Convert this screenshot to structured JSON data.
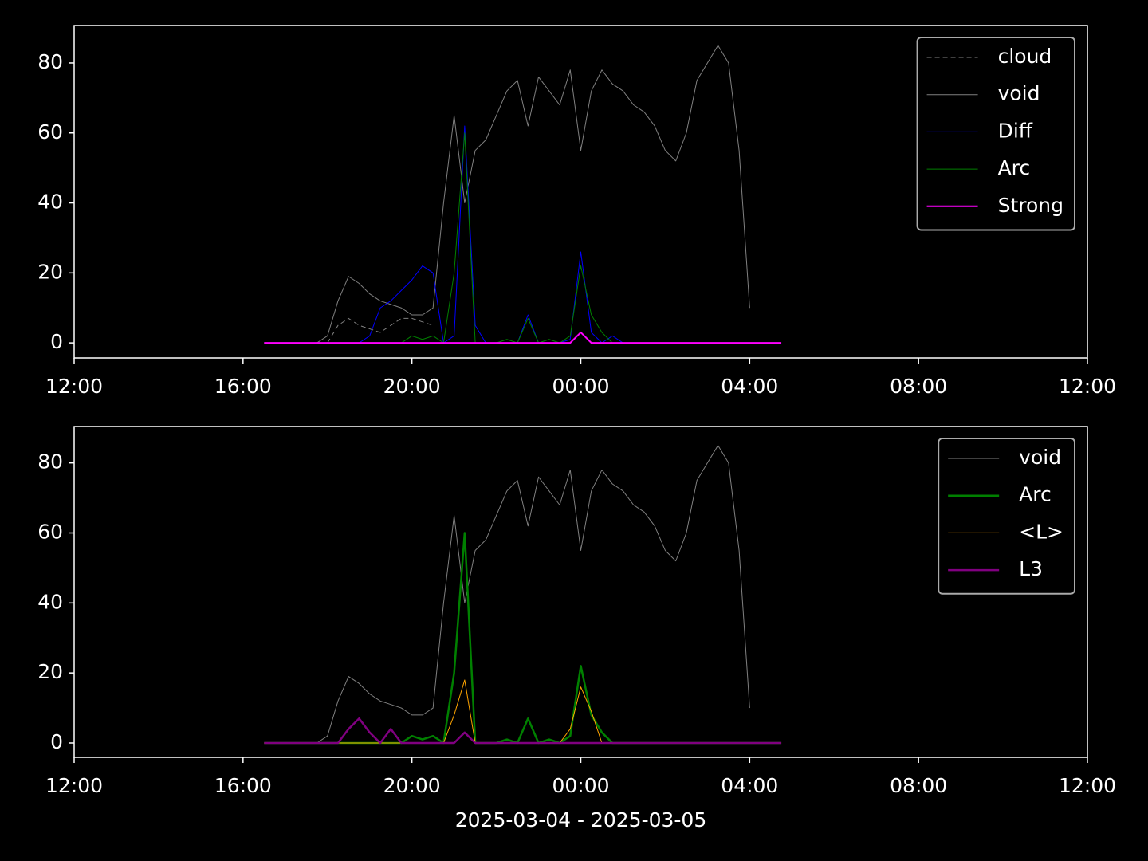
{
  "chart_data": [
    {
      "type": "line",
      "x": [
        "2025-03-04T16:30",
        "2025-03-04T16:45",
        "2025-03-04T17:00",
        "2025-03-04T17:15",
        "2025-03-04T17:30",
        "2025-03-04T17:45",
        "2025-03-04T18:00",
        "2025-03-04T18:15",
        "2025-03-04T18:30",
        "2025-03-04T18:45",
        "2025-03-04T19:00",
        "2025-03-04T19:15",
        "2025-03-04T19:30",
        "2025-03-04T19:45",
        "2025-03-04T20:00",
        "2025-03-04T20:15",
        "2025-03-04T20:30",
        "2025-03-04T20:45",
        "2025-03-04T21:00",
        "2025-03-04T21:15",
        "2025-03-04T21:30",
        "2025-03-04T21:45",
        "2025-03-04T22:00",
        "2025-03-04T22:15",
        "2025-03-04T22:30",
        "2025-03-04T22:45",
        "2025-03-04T23:00",
        "2025-03-04T23:15",
        "2025-03-04T23:30",
        "2025-03-04T23:45",
        "2025-03-05T00:00",
        "2025-03-05T00:15",
        "2025-03-05T00:30",
        "2025-03-05T00:45",
        "2025-03-05T01:00",
        "2025-03-05T01:15",
        "2025-03-05T01:30",
        "2025-03-05T01:45",
        "2025-03-05T02:00",
        "2025-03-05T02:15",
        "2025-03-05T02:30",
        "2025-03-05T02:45",
        "2025-03-05T03:00",
        "2025-03-05T03:15",
        "2025-03-05T03:30",
        "2025-03-05T03:45",
        "2025-03-05T04:00",
        "2025-03-05T04:15",
        "2025-03-05T04:30",
        "2025-03-05T04:45"
      ],
      "xlim": [
        "2025-03-04T12:00",
        "2025-03-05T12:00"
      ],
      "xticks": [
        {
          "value": "2025-03-04T12:00",
          "label": "12:00"
        },
        {
          "value": "2025-03-04T16:00",
          "label": "16:00"
        },
        {
          "value": "2025-03-04T20:00",
          "label": "20:00"
        },
        {
          "value": "2025-03-05T00:00",
          "label": "00:00"
        },
        {
          "value": "2025-03-05T04:00",
          "label": "04:00"
        },
        {
          "value": "2025-03-05T08:00",
          "label": "08:00"
        },
        {
          "value": "2025-03-05T12:00",
          "label": "12:00"
        }
      ],
      "ylim": [
        -4.3,
        90.7
      ],
      "yticks": [
        0,
        20,
        40,
        60,
        80
      ],
      "legend": "upper right",
      "series": [
        {
          "name": "cloud",
          "color": "#808080",
          "linestyle": "dashed",
          "linewidth": 1,
          "values": [
            null,
            null,
            null,
            null,
            null,
            null,
            0,
            5,
            7,
            5,
            4,
            3,
            5,
            7,
            7,
            6,
            5,
            null,
            null,
            null,
            null,
            null,
            null,
            null,
            null,
            null,
            null,
            null,
            null,
            null,
            null,
            null,
            null,
            null,
            null,
            null,
            null,
            null,
            null,
            null,
            null,
            null,
            null,
            null,
            null,
            null,
            null,
            null,
            null,
            null
          ]
        },
        {
          "name": "void",
          "color": "#808080",
          "linestyle": "solid",
          "linewidth": 1,
          "values": [
            null,
            null,
            null,
            null,
            null,
            0,
            2,
            12,
            19,
            17,
            14,
            12,
            11,
            10,
            8,
            8,
            10,
            40,
            65,
            40,
            55,
            58,
            65,
            72,
            75,
            62,
            76,
            72,
            68,
            78,
            55,
            72,
            78,
            74,
            72,
            68,
            66,
            62,
            55,
            52,
            60,
            75,
            80,
            85,
            80,
            55,
            10,
            null,
            null,
            null
          ]
        },
        {
          "name": "Diff",
          "color": "#0000ff",
          "linestyle": "solid",
          "linewidth": 1,
          "values": [
            0,
            0,
            0,
            0,
            0,
            0,
            0,
            0,
            0,
            0,
            2,
            10,
            12,
            15,
            18,
            22,
            20,
            0,
            2,
            62,
            5,
            0,
            0,
            0,
            0,
            8,
            0,
            0,
            0,
            1,
            26,
            3,
            0,
            2,
            0,
            0,
            0,
            0,
            0,
            0,
            0,
            0,
            0,
            0,
            0,
            0,
            0,
            0,
            0,
            0
          ]
        },
        {
          "name": "Arc",
          "color": "#008000",
          "linestyle": "solid",
          "linewidth": 1,
          "values": [
            0,
            0,
            0,
            0,
            0,
            0,
            0,
            0,
            0,
            0,
            0,
            0,
            0,
            0,
            2,
            1,
            2,
            0,
            20,
            60,
            0,
            0,
            0,
            1,
            0,
            7,
            0,
            1,
            0,
            2,
            22,
            8,
            3,
            0,
            0,
            0,
            0,
            0,
            0,
            0,
            0,
            0,
            0,
            0,
            0,
            0,
            0,
            0,
            0,
            0
          ]
        },
        {
          "name": "Strong",
          "color": "#ff00ff",
          "linestyle": "solid",
          "linewidth": 2,
          "values": [
            0,
            0,
            0,
            0,
            0,
            0,
            0,
            0,
            0,
            0,
            0,
            0,
            0,
            0,
            0,
            0,
            0,
            0,
            0,
            0,
            0,
            0,
            0,
            0,
            0,
            0,
            0,
            0,
            0,
            0,
            3,
            0,
            0,
            0,
            0,
            0,
            0,
            0,
            0,
            0,
            0,
            0,
            0,
            0,
            0,
            0,
            0,
            0,
            0,
            0
          ]
        }
      ]
    },
    {
      "type": "line",
      "x": [
        "2025-03-04T16:30",
        "2025-03-04T16:45",
        "2025-03-04T17:00",
        "2025-03-04T17:15",
        "2025-03-04T17:30",
        "2025-03-04T17:45",
        "2025-03-04T18:00",
        "2025-03-04T18:15",
        "2025-03-04T18:30",
        "2025-03-04T18:45",
        "2025-03-04T19:00",
        "2025-03-04T19:15",
        "2025-03-04T19:30",
        "2025-03-04T19:45",
        "2025-03-04T20:00",
        "2025-03-04T20:15",
        "2025-03-04T20:30",
        "2025-03-04T20:45",
        "2025-03-04T21:00",
        "2025-03-04T21:15",
        "2025-03-04T21:30",
        "2025-03-04T21:45",
        "2025-03-04T22:00",
        "2025-03-04T22:15",
        "2025-03-04T22:30",
        "2025-03-04T22:45",
        "2025-03-04T23:00",
        "2025-03-04T23:15",
        "2025-03-04T23:30",
        "2025-03-04T23:45",
        "2025-03-05T00:00",
        "2025-03-05T00:15",
        "2025-03-05T00:30",
        "2025-03-05T00:45",
        "2025-03-05T01:00",
        "2025-03-05T01:15",
        "2025-03-05T01:30",
        "2025-03-05T01:45",
        "2025-03-05T02:00",
        "2025-03-05T02:15",
        "2025-03-05T02:30",
        "2025-03-05T02:45",
        "2025-03-05T03:00",
        "2025-03-05T03:15",
        "2025-03-05T03:30",
        "2025-03-05T03:45",
        "2025-03-05T04:00",
        "2025-03-05T04:15",
        "2025-03-05T04:30",
        "2025-03-05T04:45"
      ],
      "xlim": [
        "2025-03-04T12:00",
        "2025-03-05T12:00"
      ],
      "xticks": [
        {
          "value": "2025-03-04T12:00",
          "label": "12:00"
        },
        {
          "value": "2025-03-04T16:00",
          "label": "16:00"
        },
        {
          "value": "2025-03-04T20:00",
          "label": "20:00"
        },
        {
          "value": "2025-03-05T00:00",
          "label": "00:00"
        },
        {
          "value": "2025-03-05T04:00",
          "label": "04:00"
        },
        {
          "value": "2025-03-05T08:00",
          "label": "08:00"
        },
        {
          "value": "2025-03-05T12:00",
          "label": "12:00"
        }
      ],
      "xlabel": "2025-03-04 - 2025-03-05",
      "ylim": [
        -4.1,
        90.4
      ],
      "yticks": [
        0,
        20,
        40,
        60,
        80
      ],
      "legend": "upper right",
      "series": [
        {
          "name": "void",
          "color": "#808080",
          "linestyle": "solid",
          "linewidth": 1,
          "values": [
            null,
            null,
            null,
            null,
            null,
            0,
            2,
            12,
            19,
            17,
            14,
            12,
            11,
            10,
            8,
            8,
            10,
            40,
            65,
            40,
            55,
            58,
            65,
            72,
            75,
            62,
            76,
            72,
            68,
            78,
            55,
            72,
            78,
            74,
            72,
            68,
            66,
            62,
            55,
            52,
            60,
            75,
            80,
            85,
            80,
            55,
            10,
            null,
            null,
            null
          ]
        },
        {
          "name": "Arc",
          "color": "#008000",
          "linestyle": "solid",
          "linewidth": 2.5,
          "values": [
            0,
            0,
            0,
            0,
            0,
            0,
            0,
            0,
            0,
            0,
            0,
            0,
            0,
            0,
            2,
            1,
            2,
            0,
            20,
            60,
            0,
            0,
            0,
            1,
            0,
            7,
            0,
            1,
            0,
            2,
            22,
            8,
            3,
            0,
            0,
            0,
            0,
            0,
            0,
            0,
            0,
            0,
            0,
            0,
            0,
            0,
            0,
            0,
            0,
            0
          ]
        },
        {
          "name": "<L>",
          "color": "#ffa500",
          "linestyle": "solid",
          "linewidth": 1,
          "values": [
            0,
            0,
            0,
            0,
            0,
            0,
            0,
            0,
            0,
            0,
            0,
            0,
            0,
            0,
            0,
            0,
            0,
            0,
            8,
            18,
            0,
            0,
            0,
            0,
            0,
            0,
            0,
            0,
            0,
            4,
            16,
            9,
            0,
            0,
            0,
            0,
            0,
            0,
            0,
            0,
            0,
            0,
            0,
            0,
            0,
            0,
            0,
            0,
            0,
            0
          ]
        },
        {
          "name": "L3",
          "color": "#800080",
          "linestyle": "solid",
          "linewidth": 2.5,
          "values": [
            0,
            0,
            0,
            0,
            0,
            0,
            0,
            0,
            4,
            7,
            3,
            0,
            4,
            0,
            0,
            0,
            0,
            0,
            0,
            3,
            0,
            0,
            0,
            0,
            0,
            0,
            0,
            0,
            0,
            0,
            0,
            0,
            0,
            0,
            0,
            0,
            0,
            0,
            0,
            0,
            0,
            0,
            0,
            0,
            0,
            0,
            0,
            0,
            0,
            0
          ]
        }
      ]
    }
  ]
}
